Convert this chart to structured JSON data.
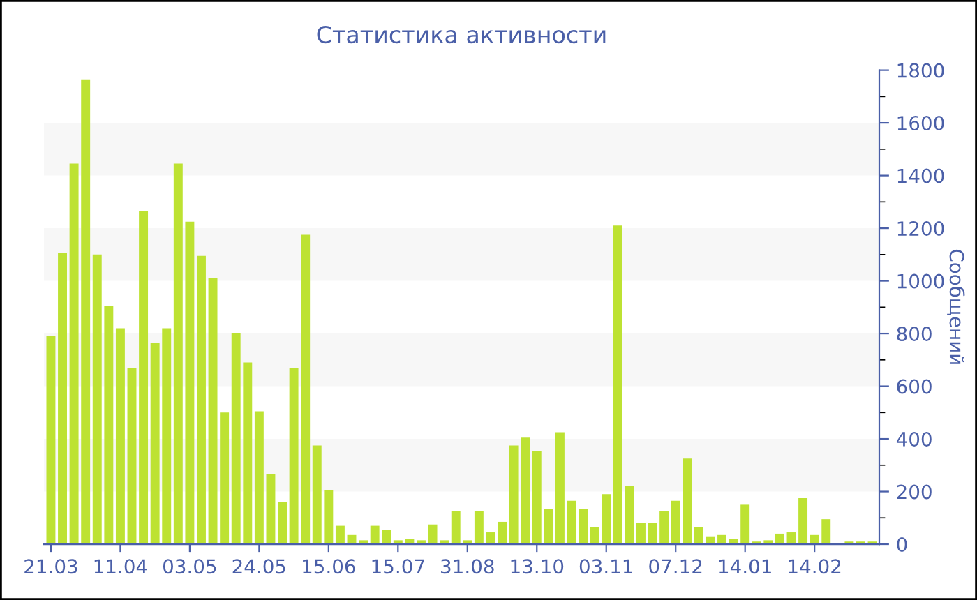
{
  "chart_data": {
    "type": "bar",
    "title": "Статистика активности",
    "ylabel": "Сообщений",
    "categories": [
      "21.03",
      null,
      null,
      null,
      null,
      null,
      "11.04",
      null,
      null,
      null,
      null,
      null,
      "03.05",
      null,
      null,
      null,
      null,
      null,
      "24.05",
      null,
      null,
      null,
      null,
      null,
      "15.06",
      null,
      null,
      null,
      null,
      null,
      "15.07",
      null,
      null,
      null,
      null,
      null,
      "31.08",
      null,
      null,
      null,
      null,
      null,
      "13.10",
      null,
      null,
      null,
      null,
      null,
      "03.11",
      null,
      null,
      null,
      null,
      null,
      "07.12",
      null,
      null,
      null,
      null,
      null,
      "14.01",
      null,
      null,
      null,
      null,
      null,
      "14.02",
      null,
      null,
      null,
      null,
      null
    ],
    "values": [
      790,
      1105,
      1445,
      1765,
      1100,
      905,
      820,
      670,
      1265,
      765,
      820,
      1445,
      1225,
      1095,
      1010,
      500,
      800,
      690,
      505,
      265,
      160,
      670,
      1175,
      375,
      205,
      70,
      35,
      15,
      70,
      55,
      15,
      20,
      15,
      75,
      15,
      125,
      15,
      125,
      45,
      85,
      375,
      405,
      355,
      135,
      425,
      165,
      135,
      65,
      190,
      1210,
      220,
      80,
      80,
      125,
      165,
      325,
      65,
      30,
      35,
      20,
      150,
      10,
      15,
      40,
      45,
      175,
      35,
      95,
      5,
      10,
      10,
      10
    ],
    "color": "#bde232",
    "ylim": [
      0,
      1800
    ],
    "yticks": [
      0,
      200,
      400,
      600,
      800,
      1000,
      1200,
      1400,
      1600,
      1800
    ],
    "bands": [
      {
        "axis": "y",
        "from": 200,
        "to": 400,
        "color": "#f7f7f7"
      },
      {
        "axis": "y",
        "from": 600,
        "to": 800,
        "color": "#f7f7f7"
      },
      {
        "axis": "y",
        "from": 1000,
        "to": 1200,
        "color": "#f7f7f7"
      },
      {
        "axis": "y",
        "from": 1400,
        "to": 1600,
        "color": "#f7f7f7"
      }
    ],
    "grid": false,
    "legend": false
  }
}
